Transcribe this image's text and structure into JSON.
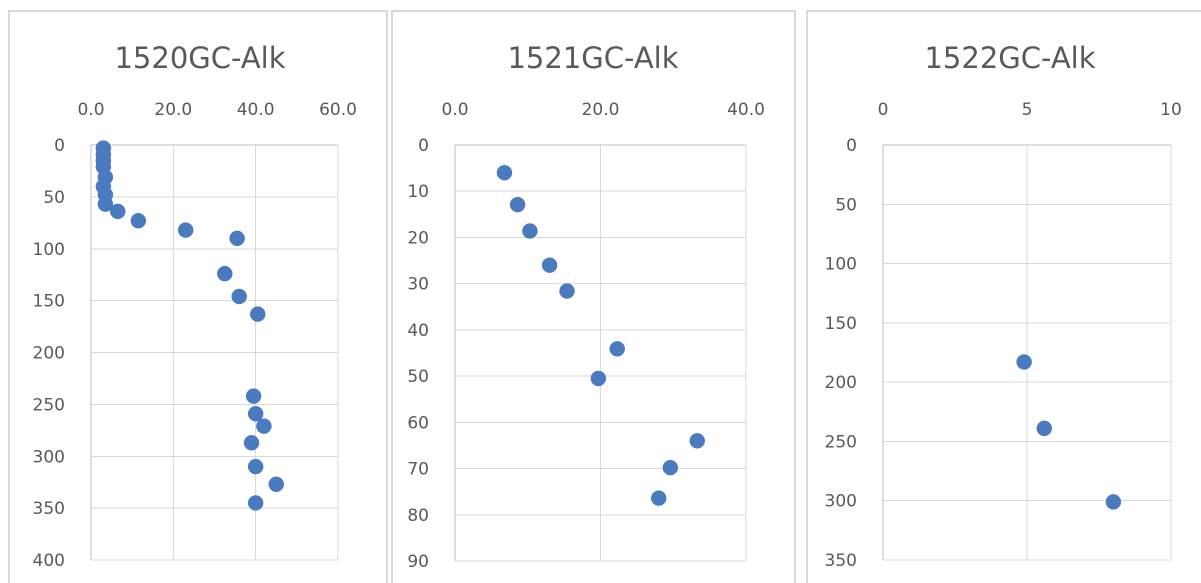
{
  "chart_data": [
    {
      "type": "scatter",
      "title": "1520GC-Alk",
      "x_axis_position": "top",
      "y_axis_reversed": true,
      "xlim": [
        0,
        60
      ],
      "ylim": [
        0,
        400
      ],
      "x_ticks": [
        "0.0",
        "20.0",
        "40.0",
        "60.0"
      ],
      "y_ticks": [
        "0",
        "50",
        "100",
        "150",
        "200",
        "250",
        "300",
        "350",
        "400"
      ],
      "grid": true,
      "points": [
        {
          "x": 3.0,
          "y": 3
        },
        {
          "x": 3.0,
          "y": 9
        },
        {
          "x": 3.0,
          "y": 15
        },
        {
          "x": 3.0,
          "y": 21
        },
        {
          "x": 3.5,
          "y": 31
        },
        {
          "x": 3.0,
          "y": 40
        },
        {
          "x": 3.5,
          "y": 48
        },
        {
          "x": 3.5,
          "y": 57
        },
        {
          "x": 6.5,
          "y": 64
        },
        {
          "x": 11.5,
          "y": 73
        },
        {
          "x": 23.0,
          "y": 82
        },
        {
          "x": 35.5,
          "y": 90
        },
        {
          "x": 32.5,
          "y": 124
        },
        {
          "x": 36.0,
          "y": 146
        },
        {
          "x": 40.5,
          "y": 163
        },
        {
          "x": 39.5,
          "y": 242
        },
        {
          "x": 40.0,
          "y": 259
        },
        {
          "x": 42.0,
          "y": 271
        },
        {
          "x": 39.0,
          "y": 287
        },
        {
          "x": 40.0,
          "y": 310
        },
        {
          "x": 45.0,
          "y": 327
        },
        {
          "x": 40.0,
          "y": 345
        }
      ]
    },
    {
      "type": "scatter",
      "title": "1521GC-Alk",
      "x_axis_position": "top",
      "y_axis_reversed": true,
      "xlim": [
        0,
        40
      ],
      "ylim": [
        0,
        90
      ],
      "x_ticks": [
        "0.0",
        "20.0",
        "40.0"
      ],
      "y_ticks": [
        "0",
        "10",
        "20",
        "30",
        "40",
        "50",
        "60",
        "70",
        "80",
        "90"
      ],
      "grid": true,
      "points": [
        {
          "x": 6.8,
          "y": 6.0
        },
        {
          "x": 8.6,
          "y": 12.9
        },
        {
          "x": 10.3,
          "y": 18.6
        },
        {
          "x": 13.0,
          "y": 26.0
        },
        {
          "x": 15.4,
          "y": 31.6
        },
        {
          "x": 22.3,
          "y": 44.1
        },
        {
          "x": 19.7,
          "y": 50.5
        },
        {
          "x": 33.3,
          "y": 64.0
        },
        {
          "x": 29.6,
          "y": 69.8
        },
        {
          "x": 28.0,
          "y": 76.4
        }
      ]
    },
    {
      "type": "scatter",
      "title": "1522GC-Alk",
      "x_axis_position": "top",
      "y_axis_reversed": true,
      "xlim": [
        0,
        10
      ],
      "ylim": [
        0,
        350
      ],
      "x_ticks": [
        "0",
        "5",
        "10"
      ],
      "y_ticks": [
        "0",
        "50",
        "100",
        "150",
        "200",
        "250",
        "300",
        "350"
      ],
      "grid": true,
      "points": [
        {
          "x": 4.9,
          "y": 183
        },
        {
          "x": 5.6,
          "y": 239
        },
        {
          "x": 8.0,
          "y": 301
        }
      ]
    }
  ]
}
